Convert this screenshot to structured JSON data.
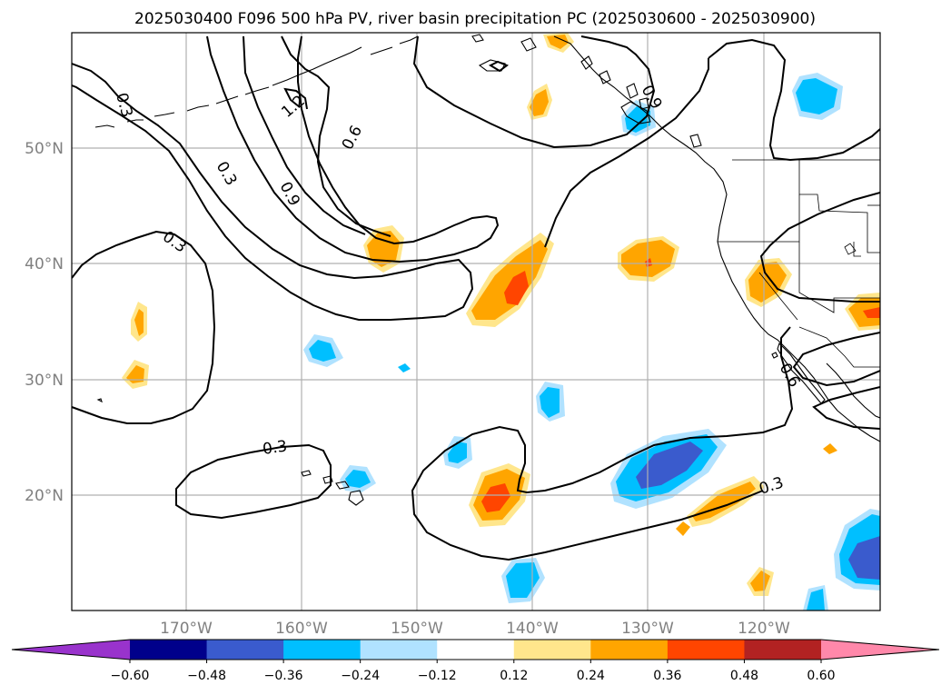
{
  "title": "2025030400 F096 500 hPa PV, river basin precipitation PC (2025030600 - 2025030900)",
  "map": {
    "lon_range": [
      -180,
      -110
    ],
    "lat_range": [
      10,
      60
    ],
    "lon_labels": [
      "170°W",
      "160°W",
      "150°W",
      "140°W",
      "130°W",
      "120°W"
    ],
    "lat_labels": [
      "50°N",
      "40°N",
      "30°N",
      "20°N"
    ],
    "contour_labels": [
      "0.3",
      "0.3",
      "0.3",
      "0.9",
      "1.2",
      "0.6",
      "0.3",
      "0.3",
      "0.6",
      "0.9"
    ]
  },
  "colorbar": {
    "ticks": [
      "−0.60",
      "−0.48",
      "−0.36",
      "−0.24",
      "−0.12",
      "0.12",
      "0.24",
      "0.36",
      "0.48",
      "0.60"
    ],
    "colors": {
      "under": "#9933cc",
      "bins": [
        "#00008b",
        "#3a5bcd",
        "#00bfff",
        "#b0e2ff",
        "#ffffff",
        "#ffe68c",
        "#ffa500",
        "#ff4500",
        "#b22222",
        "#ff88aa"
      ]
    }
  }
}
